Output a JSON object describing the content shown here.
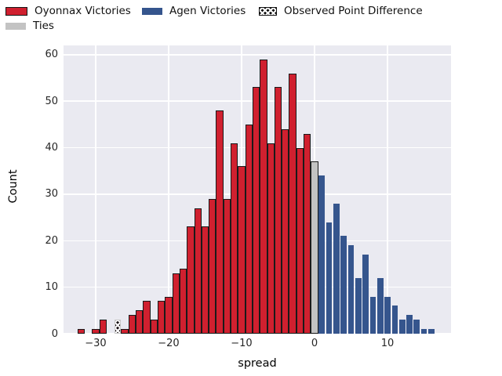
{
  "legend": {
    "items": [
      {
        "label": "Oyonnax Victories",
        "color": "#d0202f",
        "swatch": "solid-bordered"
      },
      {
        "label": "Agen Victories",
        "color": "#35558d",
        "swatch": "solid"
      },
      {
        "label": "Observed Point Difference",
        "color": "#0d0d0d",
        "swatch": "hatched"
      },
      {
        "label": "Ties",
        "color": "#c3c3c3",
        "swatch": "solid"
      }
    ]
  },
  "chart_data": {
    "type": "bar",
    "subtype": "histogram",
    "title": "",
    "xlabel": "spread",
    "ylabel": "Count",
    "xlim": [
      -34.4,
      18.7
    ],
    "ylim": [
      0,
      62
    ],
    "xticks": [
      -30,
      -20,
      -10,
      0,
      10
    ],
    "yticks": [
      0,
      10,
      20,
      30,
      40,
      50,
      60
    ],
    "grid": true,
    "legend_position": "top-left",
    "bin_width": 1,
    "series": [
      {
        "name": "Oyonnax Victories",
        "color": "#d0202f",
        "edge": true,
        "bins": [
          [
            -32,
            1
          ],
          [
            -30,
            1
          ],
          [
            -29,
            3
          ],
          [
            -26,
            1
          ],
          [
            -25,
            4
          ],
          [
            -24,
            5
          ],
          [
            -23,
            7
          ],
          [
            -22,
            3
          ],
          [
            -21,
            7
          ],
          [
            -20,
            8
          ],
          [
            -19,
            13
          ],
          [
            -18,
            14
          ],
          [
            -17,
            23
          ],
          [
            -16,
            27
          ],
          [
            -15,
            23
          ],
          [
            -14,
            29
          ],
          [
            -13,
            48
          ],
          [
            -12,
            29
          ],
          [
            -11,
            41
          ],
          [
            -10,
            36
          ],
          [
            -9,
            45
          ],
          [
            -8,
            53
          ],
          [
            -7,
            59
          ],
          [
            -6,
            41
          ],
          [
            -5,
            53
          ],
          [
            -4,
            44
          ],
          [
            -3,
            56
          ],
          [
            -2,
            40
          ],
          [
            -1,
            43
          ]
        ]
      },
      {
        "name": "Ties",
        "color": "#c3c3c3",
        "edge": true,
        "bins": [
          [
            0,
            37
          ]
        ]
      },
      {
        "name": "Agen Victories",
        "color": "#35558d",
        "edge": false,
        "bins": [
          [
            1,
            34
          ],
          [
            2,
            24
          ],
          [
            3,
            28
          ],
          [
            4,
            21
          ],
          [
            5,
            19
          ],
          [
            6,
            12
          ],
          [
            7,
            17
          ],
          [
            8,
            8
          ],
          [
            9,
            12
          ],
          [
            10,
            8
          ],
          [
            11,
            6
          ],
          [
            12,
            3
          ],
          [
            13,
            4
          ],
          [
            14,
            3
          ],
          [
            15,
            1
          ],
          [
            16,
            1
          ]
        ]
      }
    ],
    "observed_marker": {
      "name": "Observed Point Difference",
      "x": -27,
      "height": 3,
      "color": "#160d11"
    }
  },
  "style_colors": {
    "plot_background": "#eaeaf1",
    "grid": "#ffffff",
    "tick_text": "#262626",
    "label_text": "#000000"
  }
}
